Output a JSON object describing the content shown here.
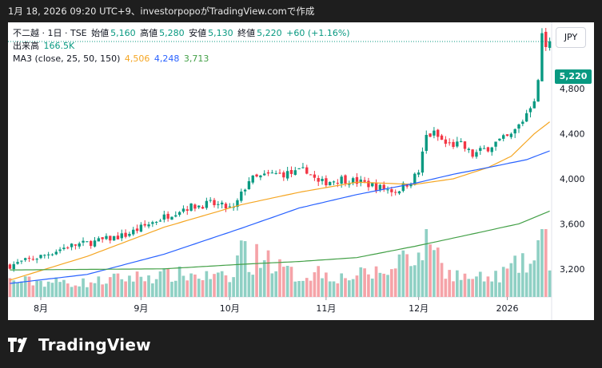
{
  "header": {
    "caption": "1月 18, 2026 09:20 UTC+9、investorpopoがTradingView.comで作成"
  },
  "legend": {
    "symbol": "不二越 · 1日 · TSE",
    "open_label": "始値",
    "open": "5,160",
    "high_label": "高値",
    "high": "5,280",
    "low_label": "安値",
    "low": "5,130",
    "close_label": "終値",
    "close": "5,220",
    "change": "+60 (+1.16%)",
    "volume_label": "出来高",
    "volume": "166.5K",
    "ma_label": "MA3 (close, 25, 50, 150)",
    "ma25": "4,506",
    "ma50": "4,248",
    "ma150": "3,713"
  },
  "currency": "JPY",
  "last_price_tag": "5,220",
  "brand": "TradingView",
  "colors": {
    "up": "#089981",
    "down": "#f23645",
    "vol_up": "#8fd0c4",
    "vol_down": "#f5a3a8",
    "ma25": "#f5a623",
    "ma50": "#2962ff",
    "ma150": "#43a047"
  },
  "chart_data": {
    "type": "candlestick",
    "y_ticks": [
      "3,200",
      "3,600",
      "4,000",
      "4,400",
      "4,800"
    ],
    "y_tick_values": [
      3200,
      3600,
      4000,
      4400,
      4800
    ],
    "x_ticks": [
      "8月",
      "9月",
      "10月",
      "11月",
      "12月",
      "2026"
    ],
    "x_tick_index": [
      8,
      34,
      57,
      82,
      106,
      129
    ],
    "ylim": [
      2950,
      5390
    ],
    "last_close": 5220,
    "series": [
      {
        "name": "MA 25",
        "anchors": [
          [
            0,
            3100
          ],
          [
            20,
            3310
          ],
          [
            40,
            3570
          ],
          [
            60,
            3770
          ],
          [
            75,
            3880
          ],
          [
            90,
            3970
          ],
          [
            105,
            3950
          ],
          [
            115,
            4000
          ],
          [
            124,
            4100
          ],
          [
            130,
            4200
          ],
          [
            136,
            4400
          ],
          [
            140,
            4506
          ]
        ]
      },
      {
        "name": "MA 50",
        "anchors": [
          [
            0,
            3070
          ],
          [
            20,
            3150
          ],
          [
            40,
            3330
          ],
          [
            60,
            3560
          ],
          [
            75,
            3740
          ],
          [
            90,
            3860
          ],
          [
            105,
            3960
          ],
          [
            115,
            4040
          ],
          [
            124,
            4100
          ],
          [
            134,
            4170
          ],
          [
            140,
            4248
          ]
        ]
      },
      {
        "name": "MA 150",
        "anchors": [
          [
            0,
            3190
          ],
          [
            40,
            3200
          ],
          [
            60,
            3240
          ],
          [
            75,
            3265
          ],
          [
            90,
            3300
          ],
          [
            105,
            3400
          ],
          [
            120,
            3510
          ],
          [
            132,
            3600
          ],
          [
            140,
            3713
          ]
        ]
      }
    ],
    "close_anchors": [
      [
        0,
        3230
      ],
      [
        8,
        3310
      ],
      [
        15,
        3400
      ],
      [
        22,
        3440
      ],
      [
        30,
        3500
      ],
      [
        38,
        3630
      ],
      [
        45,
        3740
      ],
      [
        52,
        3780
      ],
      [
        58,
        3730
      ],
      [
        62,
        3990
      ],
      [
        68,
        4040
      ],
      [
        74,
        4050
      ],
      [
        77,
        4080
      ],
      [
        80,
        3960
      ],
      [
        86,
        4000
      ],
      [
        92,
        3960
      ],
      [
        96,
        3920
      ],
      [
        100,
        3890
      ],
      [
        104,
        3980
      ],
      [
        106,
        4060
      ],
      [
        108,
        4380
      ],
      [
        110,
        4400
      ],
      [
        113,
        4310
      ],
      [
        117,
        4300
      ],
      [
        120,
        4210
      ],
      [
        123,
        4260
      ],
      [
        126,
        4320
      ],
      [
        130,
        4380
      ],
      [
        133,
        4520
      ],
      [
        136,
        4720
      ],
      [
        137,
        4850
      ],
      [
        138,
        5300
      ],
      [
        139,
        5150
      ],
      [
        140,
        5220
      ]
    ],
    "volume_anchors": [
      [
        0,
        0.25
      ],
      [
        20,
        0.22
      ],
      [
        30,
        0.3
      ],
      [
        45,
        0.35
      ],
      [
        58,
        0.28
      ],
      [
        60,
        0.95
      ],
      [
        62,
        0.45
      ],
      [
        65,
        0.7
      ],
      [
        70,
        0.45
      ],
      [
        75,
        0.3
      ],
      [
        80,
        0.4
      ],
      [
        86,
        0.3
      ],
      [
        92,
        0.35
      ],
      [
        100,
        0.42
      ],
      [
        102,
        0.78
      ],
      [
        106,
        0.58
      ],
      [
        108,
        1.0
      ],
      [
        110,
        0.9
      ],
      [
        112,
        0.45
      ],
      [
        118,
        0.3
      ],
      [
        125,
        0.28
      ],
      [
        132,
        0.5
      ],
      [
        135,
        0.5
      ],
      [
        136,
        0.55
      ],
      [
        137,
        0.8
      ],
      [
        138,
        0.92
      ],
      [
        139,
        1.0
      ],
      [
        140,
        0.65
      ]
    ]
  }
}
